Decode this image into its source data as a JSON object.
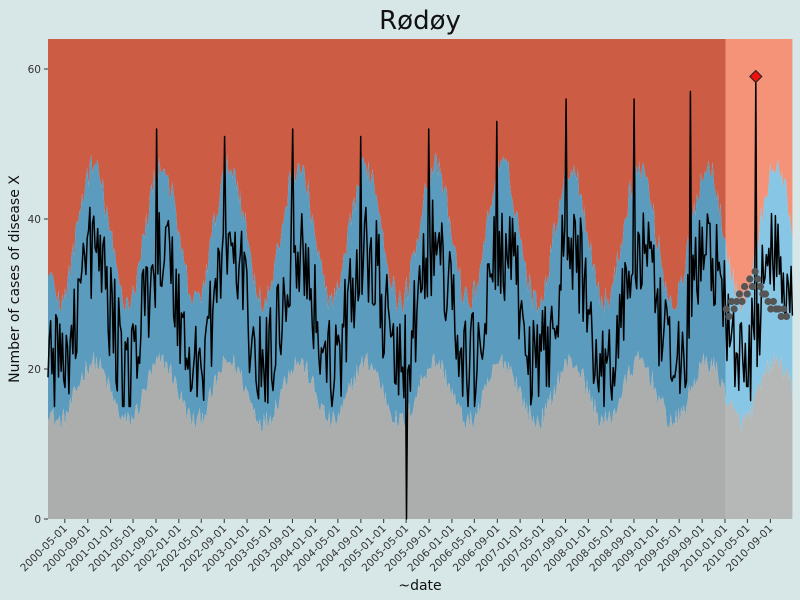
{
  "chart_data": {
    "type": "area",
    "title": "Rødøy",
    "xlabel": "~date",
    "ylabel": "Number of cases of disease X",
    "ylim": [
      0,
      64
    ],
    "xlim": [
      "2000-02-01",
      "2010-12-31"
    ],
    "forecast_start": "2010-01-01",
    "y_ticks": [
      0,
      20,
      40,
      60
    ],
    "x_ticks": [
      "2000-05-01",
      "2000-09-01",
      "2001-01-01",
      "2001-05-01",
      "2001-09-01",
      "2002-01-01",
      "2002-05-01",
      "2002-09-01",
      "2003-01-01",
      "2003-05-01",
      "2003-09-01",
      "2004-01-01",
      "2004-05-01",
      "2004-09-01",
      "2005-01-01",
      "2005-05-01",
      "2005-09-01",
      "2006-01-01",
      "2006-05-01",
      "2006-09-01",
      "2007-01-01",
      "2007-05-01",
      "2007-09-01",
      "2008-01-01",
      "2008-05-01",
      "2008-09-01",
      "2009-01-01",
      "2009-05-01",
      "2009-09-01",
      "2010-01-01",
      "2010-05-01",
      "2010-09-01"
    ],
    "bands": {
      "lower_baseline": 17,
      "lower_amplitude": 4,
      "upper_baseline": 38,
      "upper_amplitude": 9,
      "peak_month": 9
    },
    "observed_series": {
      "name": "",
      "baseline": 28,
      "amplitude": 8,
      "noise": 7,
      "anomaly_zero_date": "2005-05-01",
      "annual_peaks": [
        {
          "date": "2001-09-01",
          "value": 52
        },
        {
          "date": "2002-09-01",
          "value": 51
        },
        {
          "date": "2003-09-01",
          "value": 52
        },
        {
          "date": "2004-09-01",
          "value": 51
        },
        {
          "date": "2005-09-01",
          "value": 52
        },
        {
          "date": "2006-09-01",
          "value": 53
        },
        {
          "date": "2007-09-01",
          "value": 56
        },
        {
          "date": "2008-09-01",
          "value": 56
        },
        {
          "date": "2009-07-01",
          "value": 57
        }
      ]
    },
    "forecast_points": [
      {
        "date": "2010-01-08",
        "value": 28
      },
      {
        "date": "2010-01-22",
        "value": 27
      },
      {
        "date": "2010-02-05",
        "value": 29
      },
      {
        "date": "2010-02-19",
        "value": 28
      },
      {
        "date": "2010-03-05",
        "value": 29
      },
      {
        "date": "2010-03-19",
        "value": 30
      },
      {
        "date": "2010-04-02",
        "value": 29
      },
      {
        "date": "2010-04-16",
        "value": 31
      },
      {
        "date": "2010-04-30",
        "value": 30
      },
      {
        "date": "2010-05-14",
        "value": 32
      },
      {
        "date": "2010-05-28",
        "value": 31
      },
      {
        "date": "2010-06-11",
        "value": 33
      },
      {
        "date": "2010-06-25",
        "value": 32
      },
      {
        "date": "2010-07-09",
        "value": 31
      },
      {
        "date": "2010-07-23",
        "value": 30
      },
      {
        "date": "2010-08-06",
        "value": 30
      },
      {
        "date": "2010-08-20",
        "value": 29
      },
      {
        "date": "2010-09-03",
        "value": 28
      },
      {
        "date": "2010-09-17",
        "value": 29
      },
      {
        "date": "2010-10-01",
        "value": 28
      },
      {
        "date": "2010-10-15",
        "value": 28
      },
      {
        "date": "2010-10-29",
        "value": 27
      },
      {
        "date": "2010-11-12",
        "value": 28
      },
      {
        "date": "2010-11-26",
        "value": 27
      }
    ],
    "outbreak_marker": {
      "date": "2010-06-15",
      "value": 59
    },
    "colors": {
      "background_panel": "#d7e6e6",
      "area_high": "#cd5c45",
      "area_normal": "#5b9bbd",
      "area_low": "#acaeae",
      "forecast_high": "#f49377",
      "forecast_normal": "#87c7e5",
      "forecast_low": "#b6b7b7",
      "line": "#000000",
      "forecast_point": "#555555",
      "outbreak_marker": "#ee1111"
    },
    "grid": false,
    "legend": "none"
  }
}
